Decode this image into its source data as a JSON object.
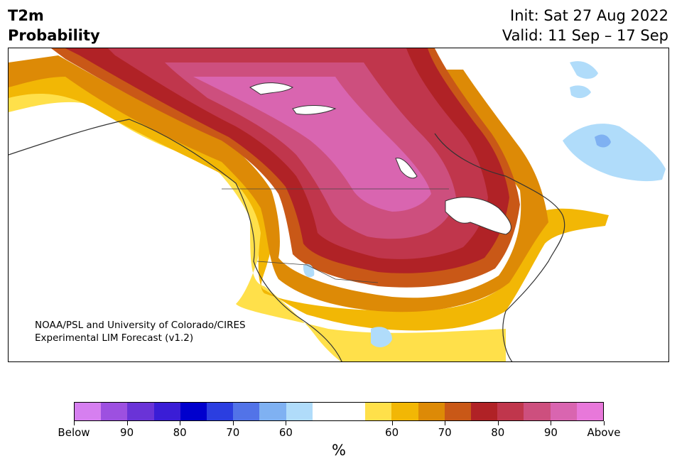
{
  "header": {
    "title_line1": "T2m",
    "title_line2": "Probability",
    "init_text": "Init: Sat 27 Aug 2022",
    "valid_text": "Valid: 11 Sep – 17 Sep"
  },
  "map": {
    "credit_line1": "NOAA/PSL and University of Colorado/CIRES",
    "credit_line2": "Experimental LIM Forecast (v1.2)"
  },
  "colorbar": {
    "unit": "%",
    "colors": [
      "#d67ff0",
      "#9d50e0",
      "#6a33d7",
      "#3a1dd6",
      "#0000cd",
      "#2b3ee0",
      "#5273e8",
      "#7fb1f2",
      "#b0dcfa",
      "#ffffff",
      "#ffffff",
      "#ffe04a",
      "#f2b705",
      "#dd8a06",
      "#c95817",
      "#b02226",
      "#c0364c",
      "#cd4f7e",
      "#d965b0",
      "#e878da"
    ],
    "tick_labels": [
      "Below",
      "90",
      "80",
      "70",
      "60",
      "60",
      "70",
      "80",
      "90",
      "Above"
    ]
  }
}
